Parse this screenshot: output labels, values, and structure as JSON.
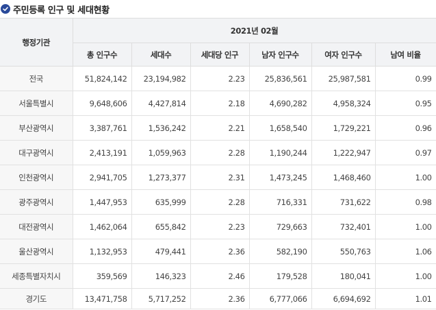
{
  "title": "주민등록 인구 및 세대현황",
  "header": {
    "agency_label": "행정기관",
    "period_label": "2021년 02월",
    "columns": [
      "총 인구수",
      "세대수",
      "세대당 인구",
      "남자 인구수",
      "여자 인구수",
      "남여 비율"
    ]
  },
  "rows": [
    {
      "name": "전국",
      "values": [
        "51,824,142",
        "23,194,982",
        "2.23",
        "25,836,561",
        "25,987,581",
        "0.99"
      ]
    },
    {
      "name": "서울특별시",
      "values": [
        "9,648,606",
        "4,427,814",
        "2.18",
        "4,690,282",
        "4,958,324",
        "0.95"
      ]
    },
    {
      "name": "부산광역시",
      "values": [
        "3,387,761",
        "1,536,242",
        "2.21",
        "1,658,540",
        "1,729,221",
        "0.96"
      ]
    },
    {
      "name": "대구광역시",
      "values": [
        "2,413,191",
        "1,059,963",
        "2.28",
        "1,190,244",
        "1,222,947",
        "0.97"
      ]
    },
    {
      "name": "인천광역시",
      "values": [
        "2,941,705",
        "1,273,377",
        "2.31",
        "1,473,245",
        "1,468,460",
        "1.00"
      ]
    },
    {
      "name": "광주광역시",
      "values": [
        "1,447,953",
        "635,999",
        "2.28",
        "716,331",
        "731,622",
        "0.98"
      ]
    },
    {
      "name": "대전광역시",
      "values": [
        "1,462,064",
        "655,842",
        "2.23",
        "729,663",
        "732,401",
        "1.00"
      ]
    },
    {
      "name": "울산광역시",
      "values": [
        "1,132,953",
        "479,441",
        "2.36",
        "582,190",
        "550,763",
        "1.06"
      ]
    },
    {
      "name": "세종특별자치시",
      "values": [
        "359,569",
        "146,323",
        "2.46",
        "179,528",
        "180,041",
        "1.00"
      ]
    },
    {
      "name": "경기도",
      "values": [
        "13,471,758",
        "5,717,252",
        "2.36",
        "6,777,066",
        "6,694,692",
        "1.01"
      ]
    }
  ]
}
